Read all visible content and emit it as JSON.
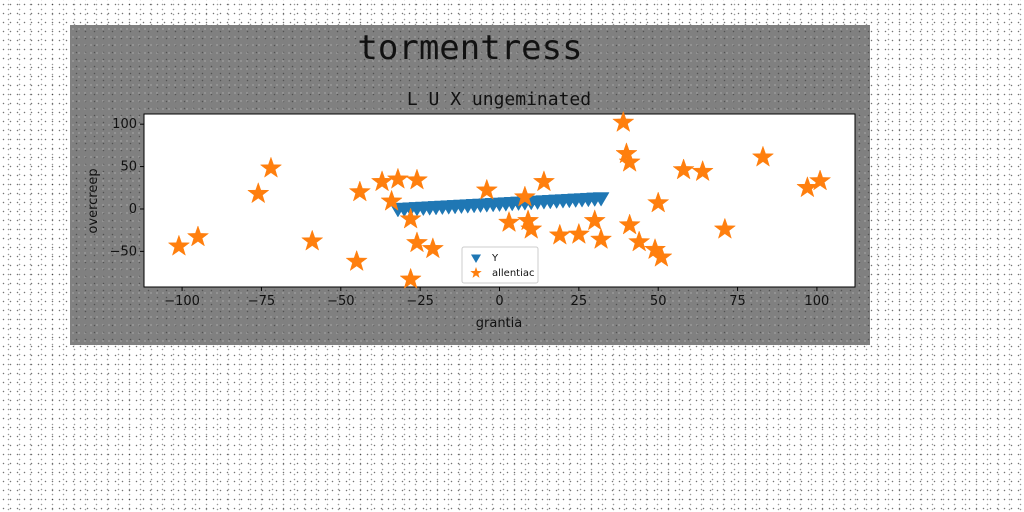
{
  "chart_data": {
    "type": "scatter",
    "title": "tormentress",
    "subtitle": "L U X ungeminated",
    "xlabel": "grantia",
    "ylabel": "overcreep",
    "xlim": [
      -112,
      112
    ],
    "ylim": [
      -92,
      112
    ],
    "xticks": [
      -100,
      -75,
      -50,
      -25,
      0,
      25,
      50,
      75,
      100
    ],
    "xtick_labels": [
      "−100",
      "−75",
      "−50",
      "−25",
      "0",
      "25",
      "50",
      "75",
      "100"
    ],
    "yticks": [
      -50,
      0,
      50,
      100
    ],
    "ytick_labels": [
      "−50",
      "0",
      "50",
      "100"
    ],
    "grid": false,
    "legend_position": "lower center",
    "series": [
      {
        "name": "Y",
        "marker": "triangle-down",
        "color": "#1f77b4",
        "points": [
          [
            -32,
            0
          ],
          [
            -30,
            0.4
          ],
          [
            -28,
            0.8
          ],
          [
            -26,
            1.2
          ],
          [
            -24,
            1.6
          ],
          [
            -22,
            2
          ],
          [
            -20,
            2.4
          ],
          [
            -18,
            2.8
          ],
          [
            -16,
            3.2
          ],
          [
            -14,
            3.6
          ],
          [
            -12,
            4
          ],
          [
            -10,
            4.4
          ],
          [
            -8,
            4.8
          ],
          [
            -6,
            5.2
          ],
          [
            -4,
            5.6
          ],
          [
            -2,
            6
          ],
          [
            0,
            6.4
          ],
          [
            2,
            6.8
          ],
          [
            4,
            7.2
          ],
          [
            6,
            7.6
          ],
          [
            8,
            8
          ],
          [
            10,
            8.4
          ],
          [
            12,
            8.8
          ],
          [
            14,
            9.2
          ],
          [
            16,
            9.6
          ],
          [
            18,
            10
          ],
          [
            20,
            10.4
          ],
          [
            22,
            10.8
          ],
          [
            24,
            11.2
          ],
          [
            26,
            11.6
          ],
          [
            28,
            12
          ],
          [
            30,
            12.4
          ],
          [
            32,
            12.8
          ]
        ]
      },
      {
        "name": "allentiac",
        "marker": "star",
        "color": "#ff7f0e",
        "points": [
          [
            -101,
            -44
          ],
          [
            -95,
            -33
          ],
          [
            -76,
            18
          ],
          [
            -72,
            48
          ],
          [
            -59,
            -38
          ],
          [
            -45,
            -62
          ],
          [
            -44,
            20
          ],
          [
            -37,
            32
          ],
          [
            -34,
            9
          ],
          [
            -32,
            35
          ],
          [
            -28,
            -12
          ],
          [
            -28,
            -83
          ],
          [
            -26,
            34
          ],
          [
            -26,
            -40
          ],
          [
            -21,
            -47
          ],
          [
            -4,
            22
          ],
          [
            3,
            -16
          ],
          [
            8,
            14
          ],
          [
            9,
            -14
          ],
          [
            10,
            -24
          ],
          [
            14,
            32
          ],
          [
            19,
            -31
          ],
          [
            25,
            -30
          ],
          [
            30,
            -14
          ],
          [
            32,
            -36
          ],
          [
            39,
            102
          ],
          [
            40,
            65
          ],
          [
            41,
            55
          ],
          [
            41,
            -19
          ],
          [
            44,
            -39
          ],
          [
            49,
            -48
          ],
          [
            50,
            7
          ],
          [
            51,
            -57
          ],
          [
            58,
            46
          ],
          [
            64,
            44
          ],
          [
            71,
            -24
          ],
          [
            83,
            61
          ],
          [
            97,
            25
          ],
          [
            101,
            33
          ]
        ]
      }
    ]
  }
}
